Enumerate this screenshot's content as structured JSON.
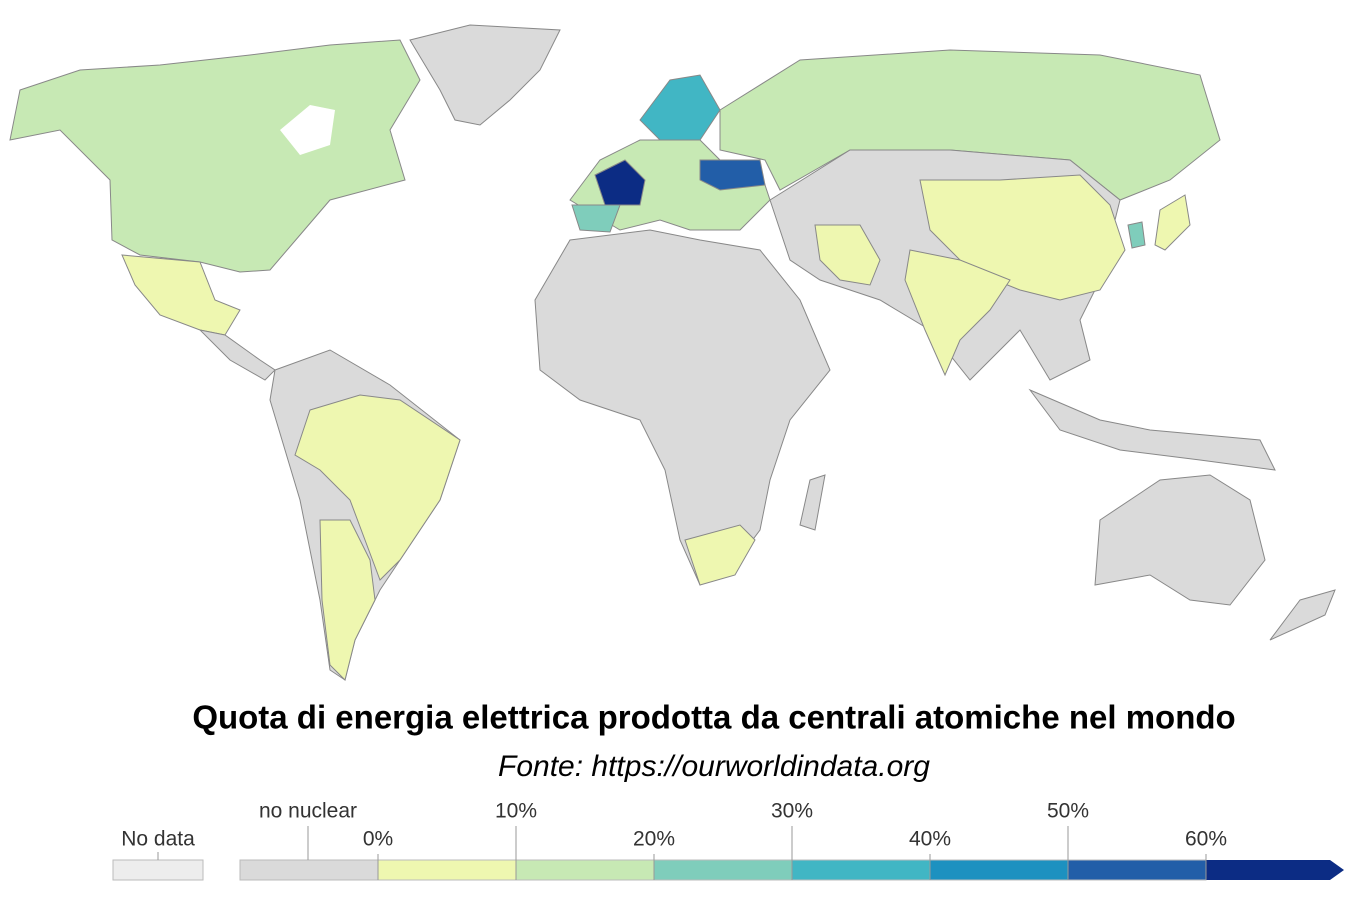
{
  "title": "Quota di energia elettrica prodotta da centrali atomiche nel mondo",
  "source": "Fonte: https://ourworldindata.org",
  "legend": {
    "no_data": {
      "label": "No data",
      "color": "#ededed"
    },
    "no_nuclear": {
      "label": "no nuclear",
      "color": "#dadada"
    },
    "bins": [
      "#eef7b0",
      "#c7e9b4",
      "#7fcdbb",
      "#41b6c4",
      "#1d91c0",
      "#225ea8",
      "#0c2c84"
    ],
    "ticks": [
      "0%",
      "10%",
      "20%",
      "30%",
      "40%",
      "50%",
      "60%"
    ]
  }
}
